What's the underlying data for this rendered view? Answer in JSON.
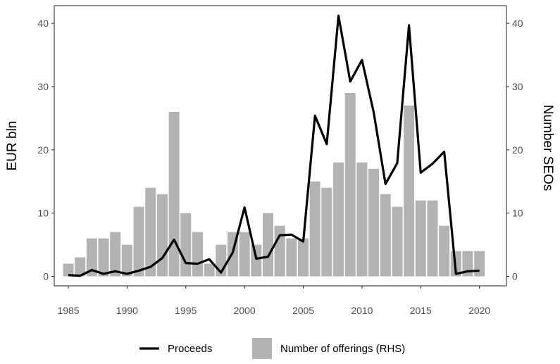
{
  "chart_data": {
    "type": "bar+line",
    "x": [
      1985,
      1986,
      1987,
      1988,
      1989,
      1990,
      1991,
      1992,
      1993,
      1994,
      1995,
      1996,
      1997,
      1998,
      1999,
      2000,
      2001,
      2002,
      2003,
      2004,
      2005,
      2006,
      2007,
      2008,
      2009,
      2010,
      2011,
      2012,
      2013,
      2014,
      2015,
      2016,
      2017,
      2018,
      2019,
      2020
    ],
    "series": [
      {
        "name": "Proceeds",
        "kind": "line",
        "axis": "left",
        "color": "#000000",
        "values": [
          0.2,
          0.1,
          1.0,
          0.4,
          0.8,
          0.4,
          0.9,
          1.5,
          2.9,
          5.8,
          2.1,
          2.0,
          2.7,
          0.6,
          3.8,
          10.9,
          2.8,
          3.1,
          6.5,
          6.6,
          5.5,
          25.4,
          20.9,
          41.2,
          30.8,
          34.2,
          25.9,
          14.6,
          17.9,
          39.7,
          16.4,
          17.8,
          19.7,
          0.4,
          0.8,
          0.9
        ]
      },
      {
        "name": "Number of offerings (RHS)",
        "kind": "bar",
        "axis": "right",
        "color": "#b3b3b3",
        "values": [
          2,
          3,
          6,
          6,
          7,
          5,
          11,
          14,
          13,
          26,
          10,
          7,
          2,
          5,
          7,
          7,
          5,
          10,
          8,
          6,
          6,
          15,
          14,
          18,
          29,
          18,
          17,
          13,
          11,
          27,
          12,
          12,
          8,
          4,
          4,
          4
        ]
      }
    ],
    "xticks": [
      "1985",
      "1990",
      "1995",
      "2000",
      "2005",
      "2010",
      "2015",
      "2020"
    ],
    "xlim": [
      1983.8,
      2022.3
    ],
    "yleft": {
      "label": "EUR bln",
      "ticks": [
        "0",
        "10",
        "20",
        "30",
        "40"
      ],
      "range": [
        -1.5,
        42.8
      ]
    },
    "yright": {
      "label": "Number SEOs",
      "ticks": [
        "0",
        "10",
        "20",
        "30",
        "40"
      ],
      "range": [
        -1.5,
        42.8
      ]
    },
    "legend": {
      "position": "bottom"
    },
    "grid": false
  }
}
